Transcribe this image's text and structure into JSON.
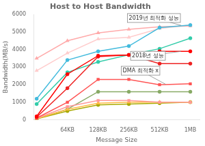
{
  "chart_data": {
    "type": "line",
    "title": "Host to Host Bandwidth",
    "xlabel": "Message Size",
    "ylabel": "Bandwidth(MB/s)",
    "x": [
      0,
      1,
      2,
      3,
      4,
      5
    ],
    "xlim": [
      -0.1,
      5.3
    ],
    "xticks": [
      {
        "value": 1,
        "label": "64KB"
      },
      {
        "value": 2,
        "label": "128KB"
      },
      {
        "value": 3,
        "label": "256KB"
      },
      {
        "value": 4,
        "label": "512KB"
      },
      {
        "value": 5,
        "label": "1MB"
      }
    ],
    "ylim": [
      0,
      6000
    ],
    "yticks": [
      0,
      1000,
      2000,
      3000,
      4000,
      5000,
      6000
    ],
    "grid": false,
    "series": [
      {
        "color": "#FF0000",
        "marker": "circle",
        "values": [
          200,
          2600,
          3650,
          3700,
          3900,
          3900
        ]
      },
      {
        "color": "#EE2222",
        "marker": "circle",
        "values": [
          150,
          1800,
          3600,
          3700,
          3200,
          3200
        ]
      },
      {
        "color": "#FF5555",
        "marker": "square",
        "values": [
          100,
          1000,
          2300,
          2300,
          2000,
          2050
        ]
      },
      {
        "color": "#FF9999",
        "marker": "square",
        "values": [
          80,
          750,
          1100,
          1100,
          1000,
          1000
        ]
      },
      {
        "color": "#FFBB44",
        "marker": "triangle",
        "values": [
          60,
          600,
          950,
          1000,
          1000,
          1000
        ]
      },
      {
        "color": "#AAAA00",
        "marker": "circle",
        "values": [
          50,
          500,
          850,
          900,
          950,
          1000
        ]
      },
      {
        "color": "#88AA66",
        "marker": "circle",
        "values": [
          60,
          600,
          1600,
          1600,
          1600,
          1600
        ]
      },
      {
        "color": "#33CCAA",
        "marker": "circle",
        "values": [
          900,
          2700,
          3300,
          3700,
          4050,
          4650
        ]
      },
      {
        "color": "#44BBDD",
        "marker": "circle",
        "values": [
          1200,
          3400,
          3900,
          4200,
          5250,
          5400
        ]
      },
      {
        "color": "#FFAAAA",
        "marker": "triangle",
        "values": [
          3500,
          4500,
          4950,
          5150,
          5300,
          5350
        ]
      },
      {
        "color": "#FFCCCC",
        "marker": "triangle",
        "values": [
          2800,
          3800,
          4600,
          4700,
          5200,
          5400
        ]
      }
    ],
    "annotations": [
      {
        "text": "2019년 최적화 성능",
        "xy": [
          4.7,
          5380
        ],
        "xytext": [
          3.0,
          5700
        ]
      },
      {
        "text": "2018년 성능",
        "xy": [
          4.7,
          3900
        ],
        "xytext": [
          3.1,
          3550
        ]
      },
      {
        "text": "DMA 최적화 x",
        "xy": [
          4.2,
          2020
        ],
        "xytext": [
          2.8,
          2700
        ]
      }
    ]
  }
}
